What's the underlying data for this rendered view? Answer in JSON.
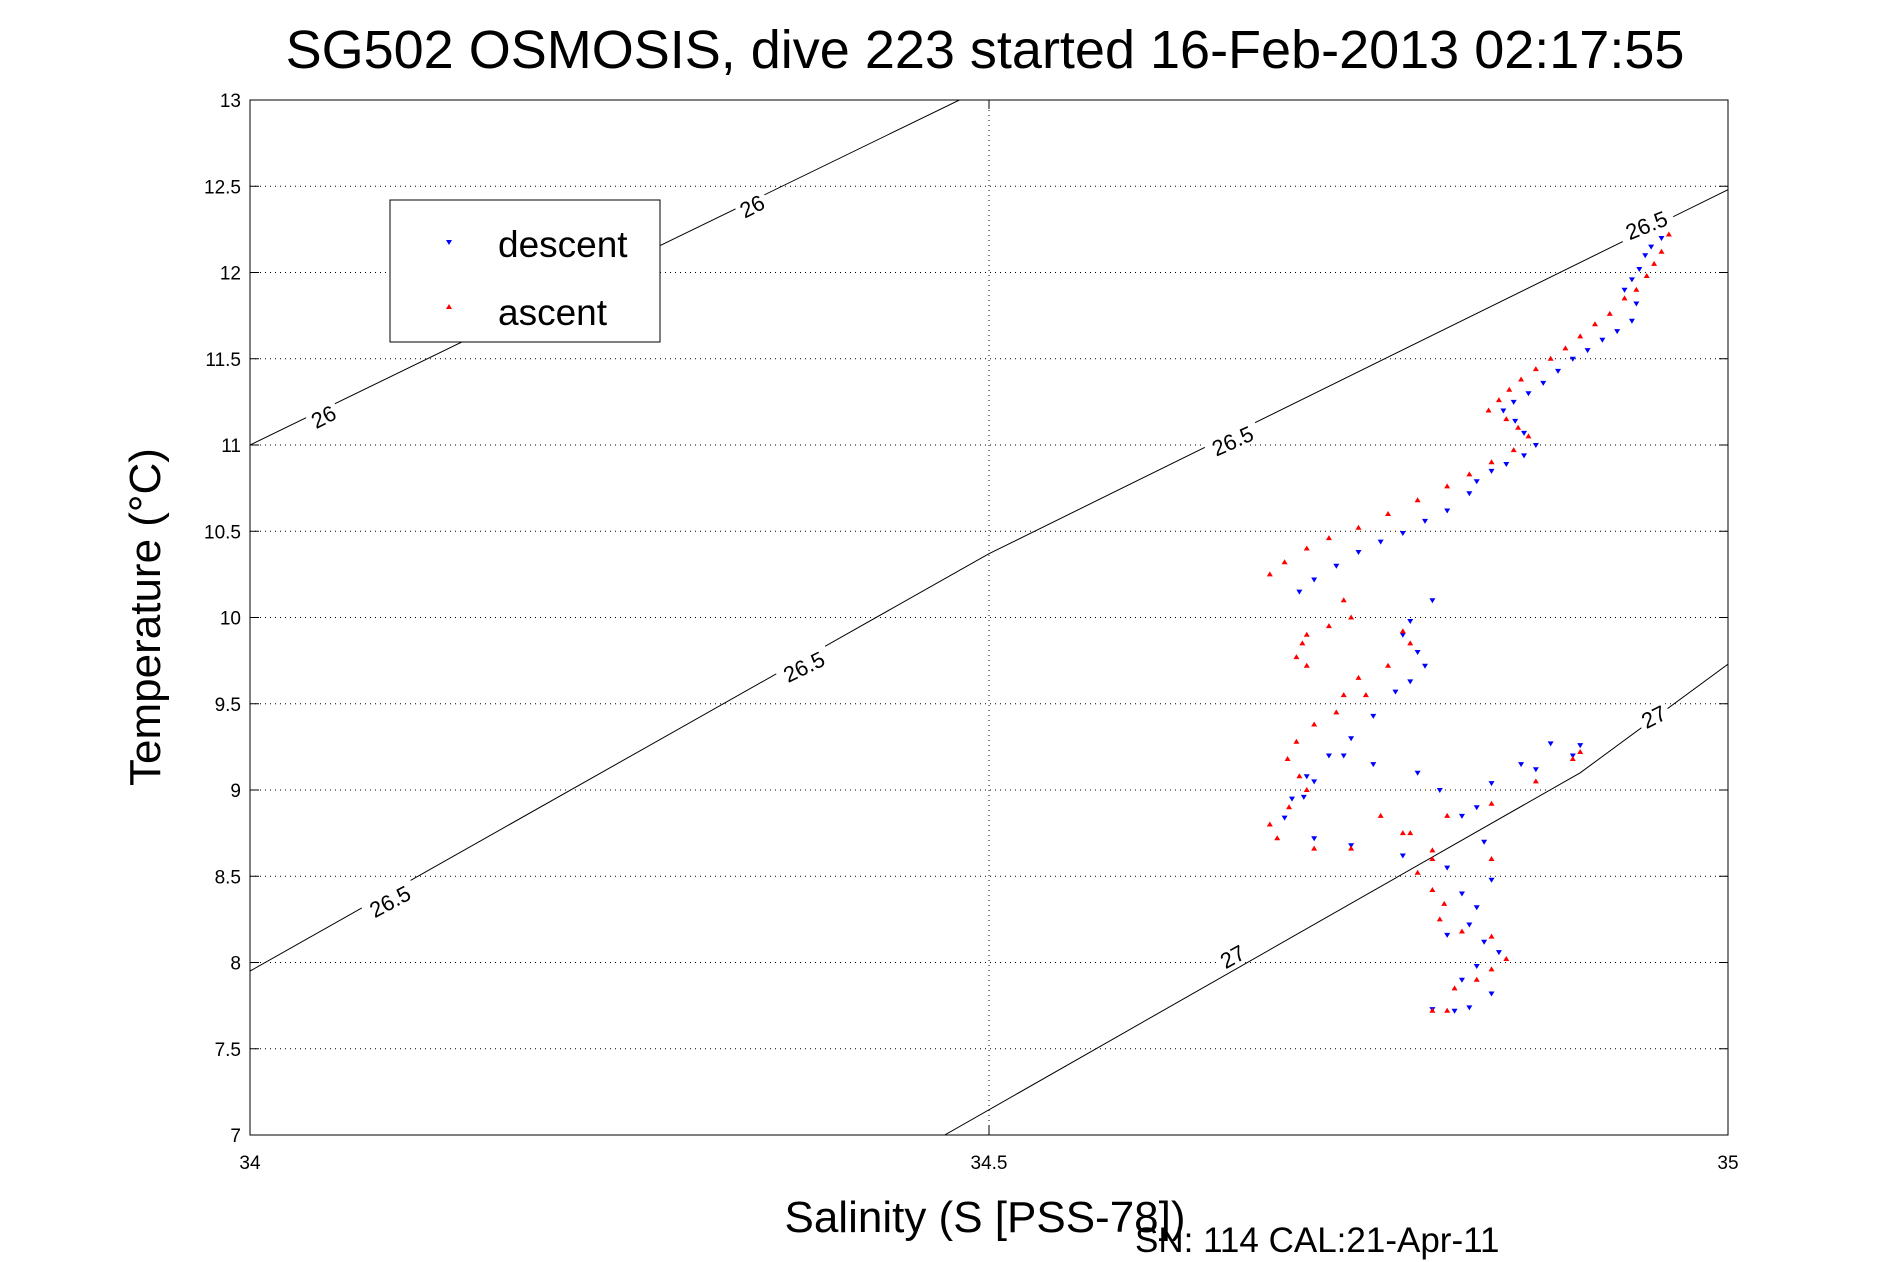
{
  "chart_data": {
    "type": "scatter",
    "title": "SG502 OSMOSIS, dive 223 started 16-Feb-2013 02:17:55",
    "xlabel": "Salinity (S [PSS-78])",
    "ylabel": "Temperature (°C)",
    "xlim": [
      34,
      35
    ],
    "ylim": [
      7,
      13
    ],
    "xticks": [
      "34",
      "34.5",
      "35"
    ],
    "yticks": [
      "7",
      "7.5",
      "8",
      "8.5",
      "9",
      "9.5",
      "10",
      "10.5",
      "11",
      "11.5",
      "12",
      "12.5",
      "13"
    ],
    "grid": true,
    "legend_position": "top-left",
    "footer": "SN: 114  CAL:21-Apr-11",
    "density_contours": [
      {
        "label": "26",
        "points": [
          [
            34.0,
            11.0
          ],
          [
            34.48,
            13.0
          ]
        ]
      },
      {
        "label": "26.5",
        "points": [
          [
            34.0,
            7.95
          ],
          [
            34.5,
            10.37
          ],
          [
            35.0,
            12.48
          ]
        ]
      },
      {
        "label": "27",
        "points": [
          [
            34.47,
            7.0
          ],
          [
            34.9,
            9.1
          ],
          [
            35.0,
            9.73
          ]
        ]
      }
    ],
    "contour_labels": [
      {
        "text": "26",
        "x": 34.34,
        "y": 12.38,
        "angle": -27
      },
      {
        "text": "26",
        "x": 34.05,
        "y": 11.16,
        "angle": -27
      },
      {
        "text": "26.5",
        "x": 34.665,
        "y": 11.02,
        "angle": -24
      },
      {
        "text": "26.5",
        "x": 34.375,
        "y": 9.71,
        "angle": -26
      },
      {
        "text": "26.5",
        "x": 34.095,
        "y": 8.35,
        "angle": -28
      },
      {
        "text": "26.5",
        "x": 34.945,
        "y": 12.27,
        "angle": -22
      },
      {
        "text": "27",
        "x": 34.665,
        "y": 8.03,
        "angle": -29
      },
      {
        "text": "27",
        "x": 34.95,
        "y": 9.42,
        "angle": -27
      }
    ],
    "series": [
      {
        "name": "descent",
        "color": "#0000ff",
        "marker": "triangle-down",
        "points": [
          [
            34.955,
            12.2
          ],
          [
            34.948,
            12.15
          ],
          [
            34.944,
            12.1
          ],
          [
            34.94,
            12.02
          ],
          [
            34.935,
            11.96
          ],
          [
            34.93,
            11.9
          ],
          [
            34.938,
            11.82
          ],
          [
            34.935,
            11.72
          ],
          [
            34.925,
            11.66
          ],
          [
            34.915,
            11.61
          ],
          [
            34.905,
            11.55
          ],
          [
            34.895,
            11.5
          ],
          [
            34.885,
            11.43
          ],
          [
            34.875,
            11.36
          ],
          [
            34.865,
            11.3
          ],
          [
            34.855,
            11.25
          ],
          [
            34.848,
            11.2
          ],
          [
            34.856,
            11.14
          ],
          [
            34.862,
            11.07
          ],
          [
            34.87,
            11.0
          ],
          [
            34.862,
            10.94
          ],
          [
            34.85,
            10.89
          ],
          [
            34.84,
            10.85
          ],
          [
            34.83,
            10.79
          ],
          [
            34.825,
            10.72
          ],
          [
            34.81,
            10.62
          ],
          [
            34.795,
            10.56
          ],
          [
            34.78,
            10.49
          ],
          [
            34.765,
            10.44
          ],
          [
            34.75,
            10.38
          ],
          [
            34.735,
            10.3
          ],
          [
            34.72,
            10.22
          ],
          [
            34.71,
            10.15
          ],
          [
            34.8,
            10.1
          ],
          [
            34.785,
            9.98
          ],
          [
            34.78,
            9.9
          ],
          [
            34.79,
            9.8
          ],
          [
            34.795,
            9.72
          ],
          [
            34.785,
            9.63
          ],
          [
            34.775,
            9.57
          ],
          [
            34.76,
            9.43
          ],
          [
            34.745,
            9.3
          ],
          [
            34.73,
            9.2
          ],
          [
            34.715,
            9.08
          ],
          [
            34.705,
            8.95
          ],
          [
            34.7,
            8.84
          ],
          [
            34.72,
            8.72
          ],
          [
            34.745,
            8.68
          ],
          [
            34.78,
            8.62
          ],
          [
            34.81,
            8.55
          ],
          [
            34.84,
            8.48
          ],
          [
            34.82,
            8.4
          ],
          [
            34.83,
            8.32
          ],
          [
            34.825,
            8.22
          ],
          [
            34.81,
            8.16
          ],
          [
            34.835,
            8.12
          ],
          [
            34.845,
            8.06
          ],
          [
            34.83,
            7.98
          ],
          [
            34.82,
            7.9
          ],
          [
            34.84,
            7.82
          ],
          [
            34.825,
            7.74
          ],
          [
            34.8,
            7.73
          ],
          [
            34.815,
            7.72
          ],
          [
            34.86,
            9.15
          ],
          [
            34.88,
            9.27
          ],
          [
            34.9,
            9.26
          ],
          [
            34.895,
            9.2
          ],
          [
            34.87,
            9.12
          ],
          [
            34.84,
            9.04
          ],
          [
            34.805,
            9.0
          ],
          [
            34.79,
            9.1
          ],
          [
            34.835,
            8.7
          ],
          [
            34.83,
            8.9
          ],
          [
            34.82,
            8.85
          ],
          [
            34.74,
            9.2
          ],
          [
            34.72,
            9.05
          ],
          [
            34.713,
            8.96
          ],
          [
            34.76,
            9.15
          ]
        ]
      },
      {
        "name": "ascent",
        "color": "#ff0000",
        "marker": "triangle-up",
        "points": [
          [
            34.96,
            12.22
          ],
          [
            34.955,
            12.12
          ],
          [
            34.95,
            12.05
          ],
          [
            34.945,
            11.98
          ],
          [
            34.938,
            11.9
          ],
          [
            34.93,
            11.85
          ],
          [
            34.92,
            11.76
          ],
          [
            34.91,
            11.7
          ],
          [
            34.9,
            11.63
          ],
          [
            34.89,
            11.56
          ],
          [
            34.88,
            11.5
          ],
          [
            34.87,
            11.44
          ],
          [
            34.86,
            11.38
          ],
          [
            34.852,
            11.32
          ],
          [
            34.845,
            11.26
          ],
          [
            34.838,
            11.2
          ],
          [
            34.85,
            11.15
          ],
          [
            34.858,
            11.1
          ],
          [
            34.865,
            11.05
          ],
          [
            34.855,
            10.97
          ],
          [
            34.84,
            10.9
          ],
          [
            34.825,
            10.83
          ],
          [
            34.81,
            10.76
          ],
          [
            34.79,
            10.68
          ],
          [
            34.77,
            10.6
          ],
          [
            34.75,
            10.52
          ],
          [
            34.73,
            10.46
          ],
          [
            34.715,
            10.4
          ],
          [
            34.7,
            10.32
          ],
          [
            34.69,
            10.25
          ],
          [
            34.74,
            10.1
          ],
          [
            34.745,
            10.0
          ],
          [
            34.73,
            9.95
          ],
          [
            34.715,
            9.9
          ],
          [
            34.712,
            9.85
          ],
          [
            34.708,
            9.77
          ],
          [
            34.715,
            9.72
          ],
          [
            34.75,
            9.65
          ],
          [
            34.77,
            9.72
          ],
          [
            34.785,
            9.85
          ],
          [
            34.78,
            9.92
          ],
          [
            34.755,
            9.55
          ],
          [
            34.735,
            9.45
          ],
          [
            34.72,
            9.38
          ],
          [
            34.708,
            9.28
          ],
          [
            34.702,
            9.18
          ],
          [
            34.71,
            9.08
          ],
          [
            34.715,
            9.0
          ],
          [
            34.703,
            8.9
          ],
          [
            34.69,
            8.8
          ],
          [
            34.695,
            8.72
          ],
          [
            34.72,
            8.66
          ],
          [
            34.745,
            8.66
          ],
          [
            34.785,
            8.75
          ],
          [
            34.81,
            8.85
          ],
          [
            34.84,
            8.92
          ],
          [
            34.87,
            9.05
          ],
          [
            34.895,
            9.18
          ],
          [
            34.9,
            9.22
          ],
          [
            34.8,
            8.65
          ],
          [
            34.79,
            8.52
          ],
          [
            34.8,
            8.42
          ],
          [
            34.808,
            8.34
          ],
          [
            34.805,
            8.25
          ],
          [
            34.82,
            8.18
          ],
          [
            34.84,
            8.15
          ],
          [
            34.85,
            8.02
          ],
          [
            34.84,
            7.96
          ],
          [
            34.83,
            7.9
          ],
          [
            34.815,
            7.85
          ],
          [
            34.81,
            7.72
          ],
          [
            34.8,
            7.72
          ],
          [
            34.78,
            8.75
          ],
          [
            34.765,
            8.85
          ],
          [
            34.74,
            9.55
          ],
          [
            34.8,
            8.6
          ],
          [
            34.84,
            8.6
          ]
        ]
      }
    ]
  }
}
